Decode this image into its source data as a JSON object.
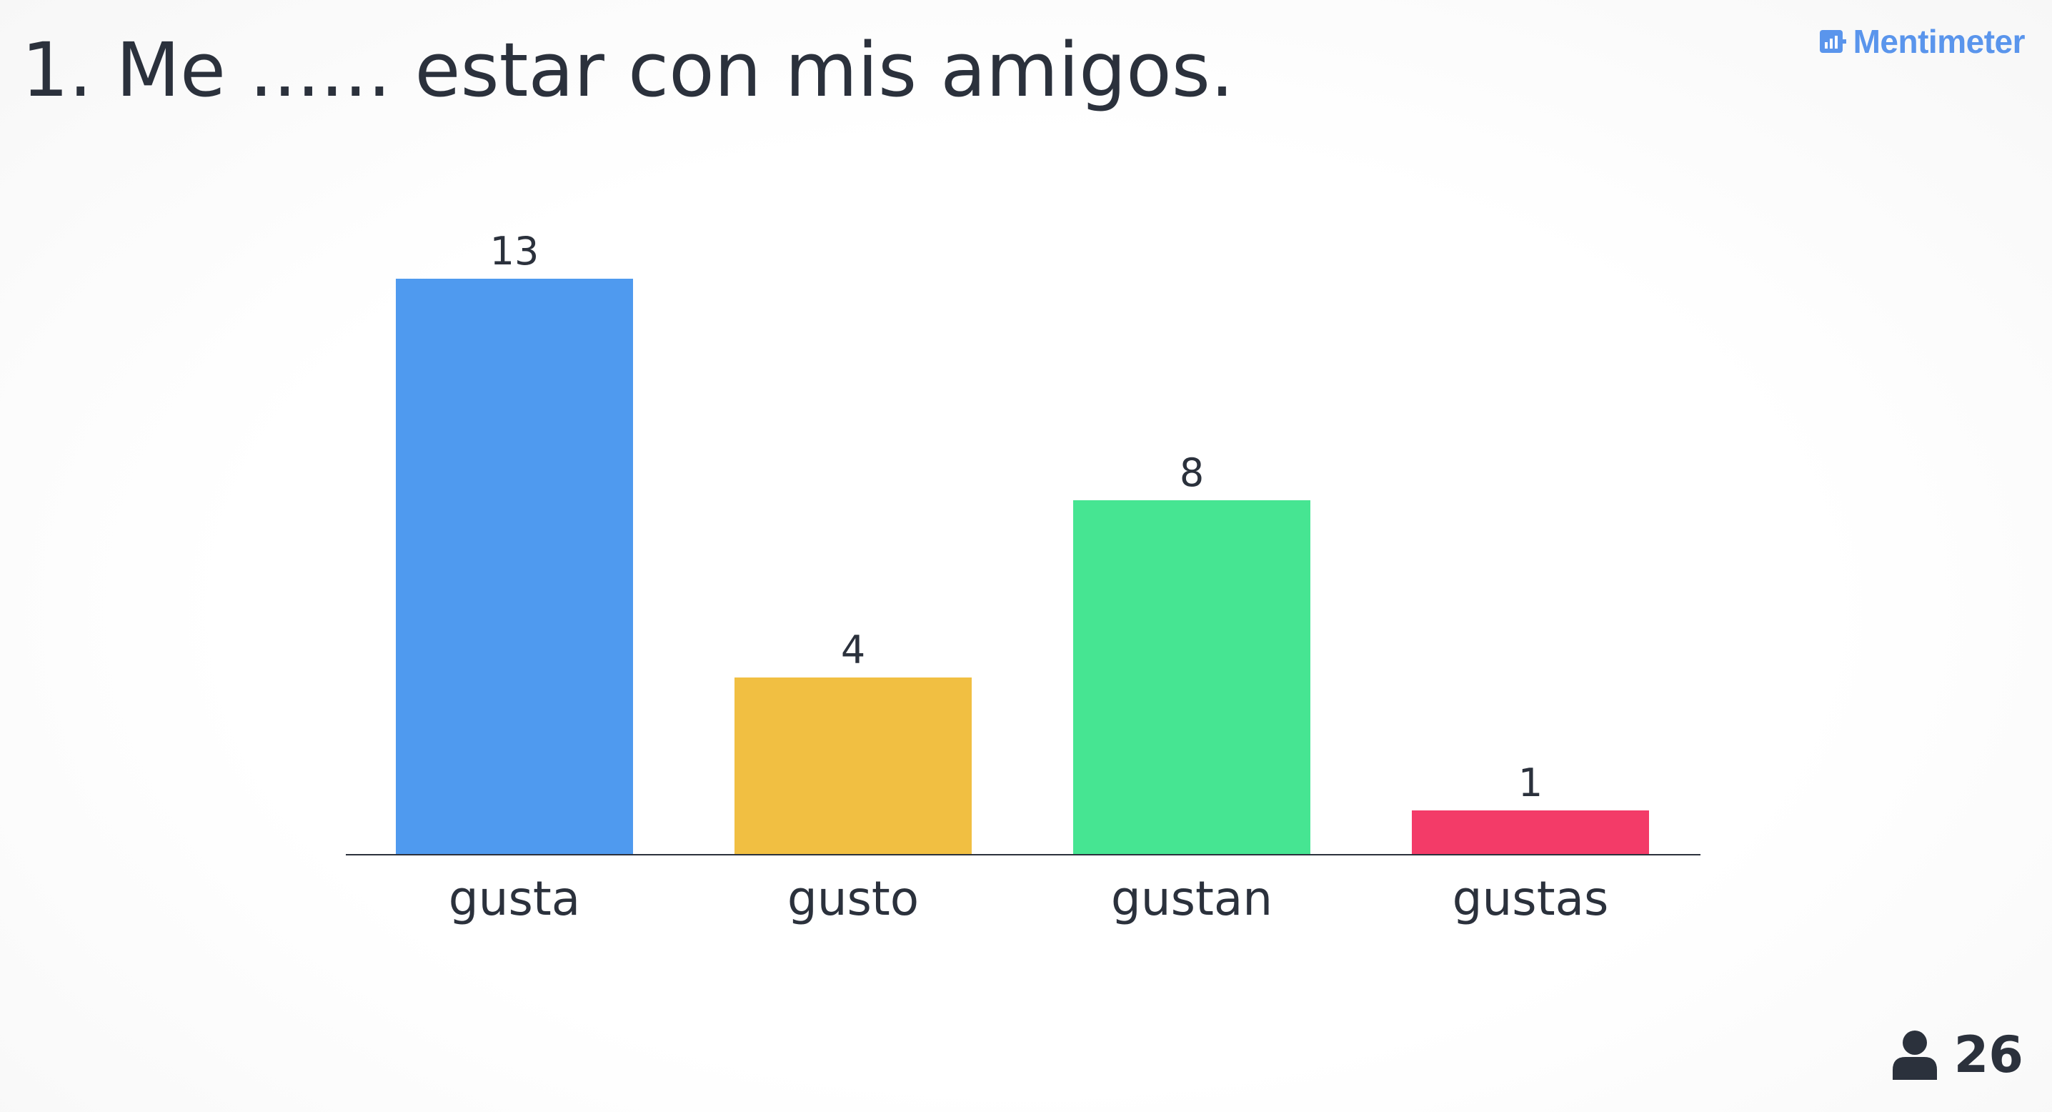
{
  "question": {
    "title": "1. Me ...... estar con mis amigos."
  },
  "brand": {
    "name": "Mentimeter",
    "icon": "bar-chart-logo-icon",
    "color": "#5a95ec"
  },
  "participants": {
    "icon": "person-icon",
    "count": "26"
  },
  "chart_data": {
    "type": "bar",
    "categories": [
      "gusta",
      "gusto",
      "gustan",
      "gustas"
    ],
    "values": [
      13,
      4,
      8,
      1
    ],
    "colors": [
      "#4f9aef",
      "#f1bf42",
      "#46e592",
      "#f33b68"
    ],
    "title": "",
    "xlabel": "",
    "ylabel": "",
    "ylim": [
      0,
      13
    ],
    "grid": false,
    "legend": "none",
    "data_labels": true
  }
}
